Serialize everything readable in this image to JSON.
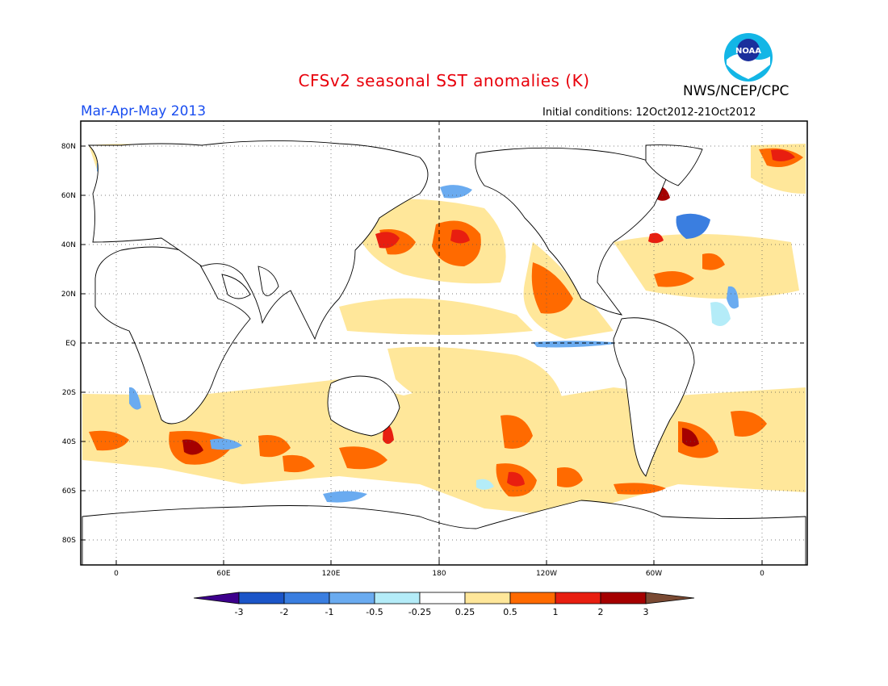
{
  "header": {
    "title": "CFSv2 seasonal SST anomalies (K)",
    "organization": "NWS/NCEP/CPC",
    "season": "Mar-Apr-May 2013",
    "initial_conditions": "Initial conditions: 12Oct2012-21Oct2012",
    "logo_text": "NOAA"
  },
  "axes": {
    "lat_labels": [
      "80N",
      "60N",
      "40N",
      "20N",
      "EQ",
      "20S",
      "40S",
      "60S",
      "80S"
    ],
    "lon_labels": [
      "0",
      "60E",
      "120E",
      "180",
      "120W",
      "60W",
      "0"
    ]
  },
  "colorbar": {
    "labels": [
      "-3",
      "-2",
      "-1",
      "-0.5",
      "-0.25",
      "0.25",
      "0.5",
      "1",
      "2",
      "3"
    ],
    "colors": [
      "#3d008c",
      "#1b55c8",
      "#3a7ee0",
      "#6aabf0",
      "#b4ecf8",
      "#ffffff",
      "#ffe79a",
      "#ff6a00",
      "#e81e10",
      "#a50000",
      "#7a4a33"
    ]
  }
}
